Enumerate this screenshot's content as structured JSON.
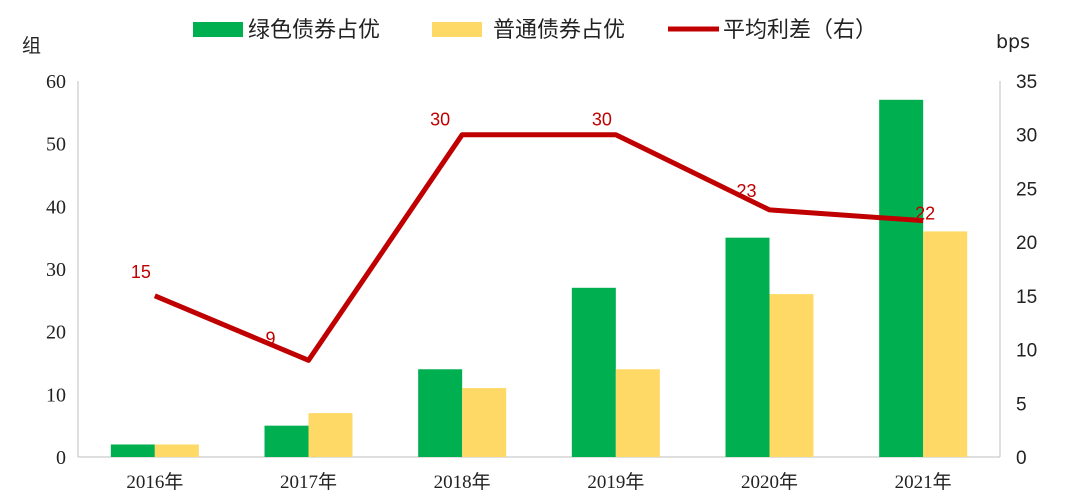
{
  "chart_data": {
    "type": "bar",
    "categories": [
      "2016年",
      "2017年",
      "2018年",
      "2019年",
      "2020年",
      "2021年"
    ],
    "series": [
      {
        "name": "绿色债券占优",
        "type": "bar",
        "axis": "left",
        "color": "#00b050",
        "values": [
          2,
          5,
          14,
          27,
          35,
          57
        ]
      },
      {
        "name": "普通债券占优",
        "type": "bar",
        "axis": "left",
        "color": "#ffd966",
        "values": [
          2,
          7,
          11,
          14,
          26,
          36
        ]
      },
      {
        "name": "平均利差（右）",
        "type": "line",
        "axis": "right",
        "color": "#c00000",
        "values": [
          15,
          9,
          30,
          30,
          23,
          22
        ],
        "data_labels": [
          "15",
          "9",
          "30",
          "30",
          "23",
          "22"
        ]
      }
    ],
    "ylabel_left": "组",
    "ylabel_right": "bps",
    "ylim_left": [
      0,
      60
    ],
    "yticks_left": [
      "0",
      "10",
      "20",
      "30",
      "40",
      "50",
      "60"
    ],
    "ylim_right": [
      0,
      35
    ],
    "yticks_right": [
      "0",
      "5",
      "10",
      "15",
      "20",
      "25",
      "30",
      "35"
    ],
    "legend_position": "top",
    "grid": false
  }
}
